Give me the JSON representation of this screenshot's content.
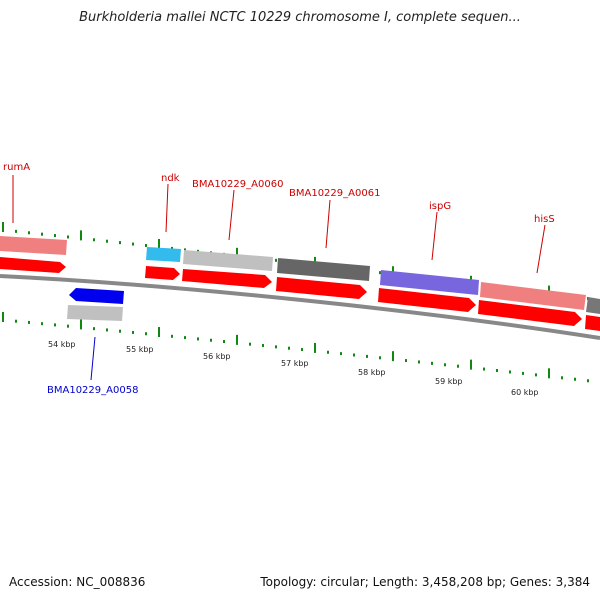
{
  "title": "Burkholderia mallei NCTC 10229 chromosome I, complete sequen...",
  "footer": {
    "accession": "Accession: NC_008836",
    "summary": "Topology: circular; Length: 3,458,208 bp; Genes: 3,384"
  },
  "colors": {
    "forward_label": "#cc0000",
    "reverse_label": "#0000cc",
    "cds_arrow": "#ff0000",
    "tick": "#118811",
    "backbone": "#888888"
  },
  "axis": {
    "tick_labels": [
      "54 kbp",
      "55 kbp",
      "56 kbp",
      "57 kbp",
      "58 kbp",
      "59 kbp",
      "60 kbp"
    ]
  },
  "genes": {
    "forward": [
      {
        "name": "rumA",
        "color": "#f08080"
      },
      {
        "name": "ndk",
        "color": "#33bbee"
      },
      {
        "name": "BMA10229_A0060",
        "color": "#c0c0c0"
      },
      {
        "name": "BMA10229_A0061",
        "color": "#666666"
      },
      {
        "name": "ispG",
        "color": "#7766dd"
      },
      {
        "name": "hisS",
        "color": "#f08080"
      },
      {
        "name": "",
        "color": "#777777"
      }
    ],
    "reverse": [
      {
        "name": "BMA10229_A0058",
        "color": "#0000ee"
      }
    ]
  }
}
